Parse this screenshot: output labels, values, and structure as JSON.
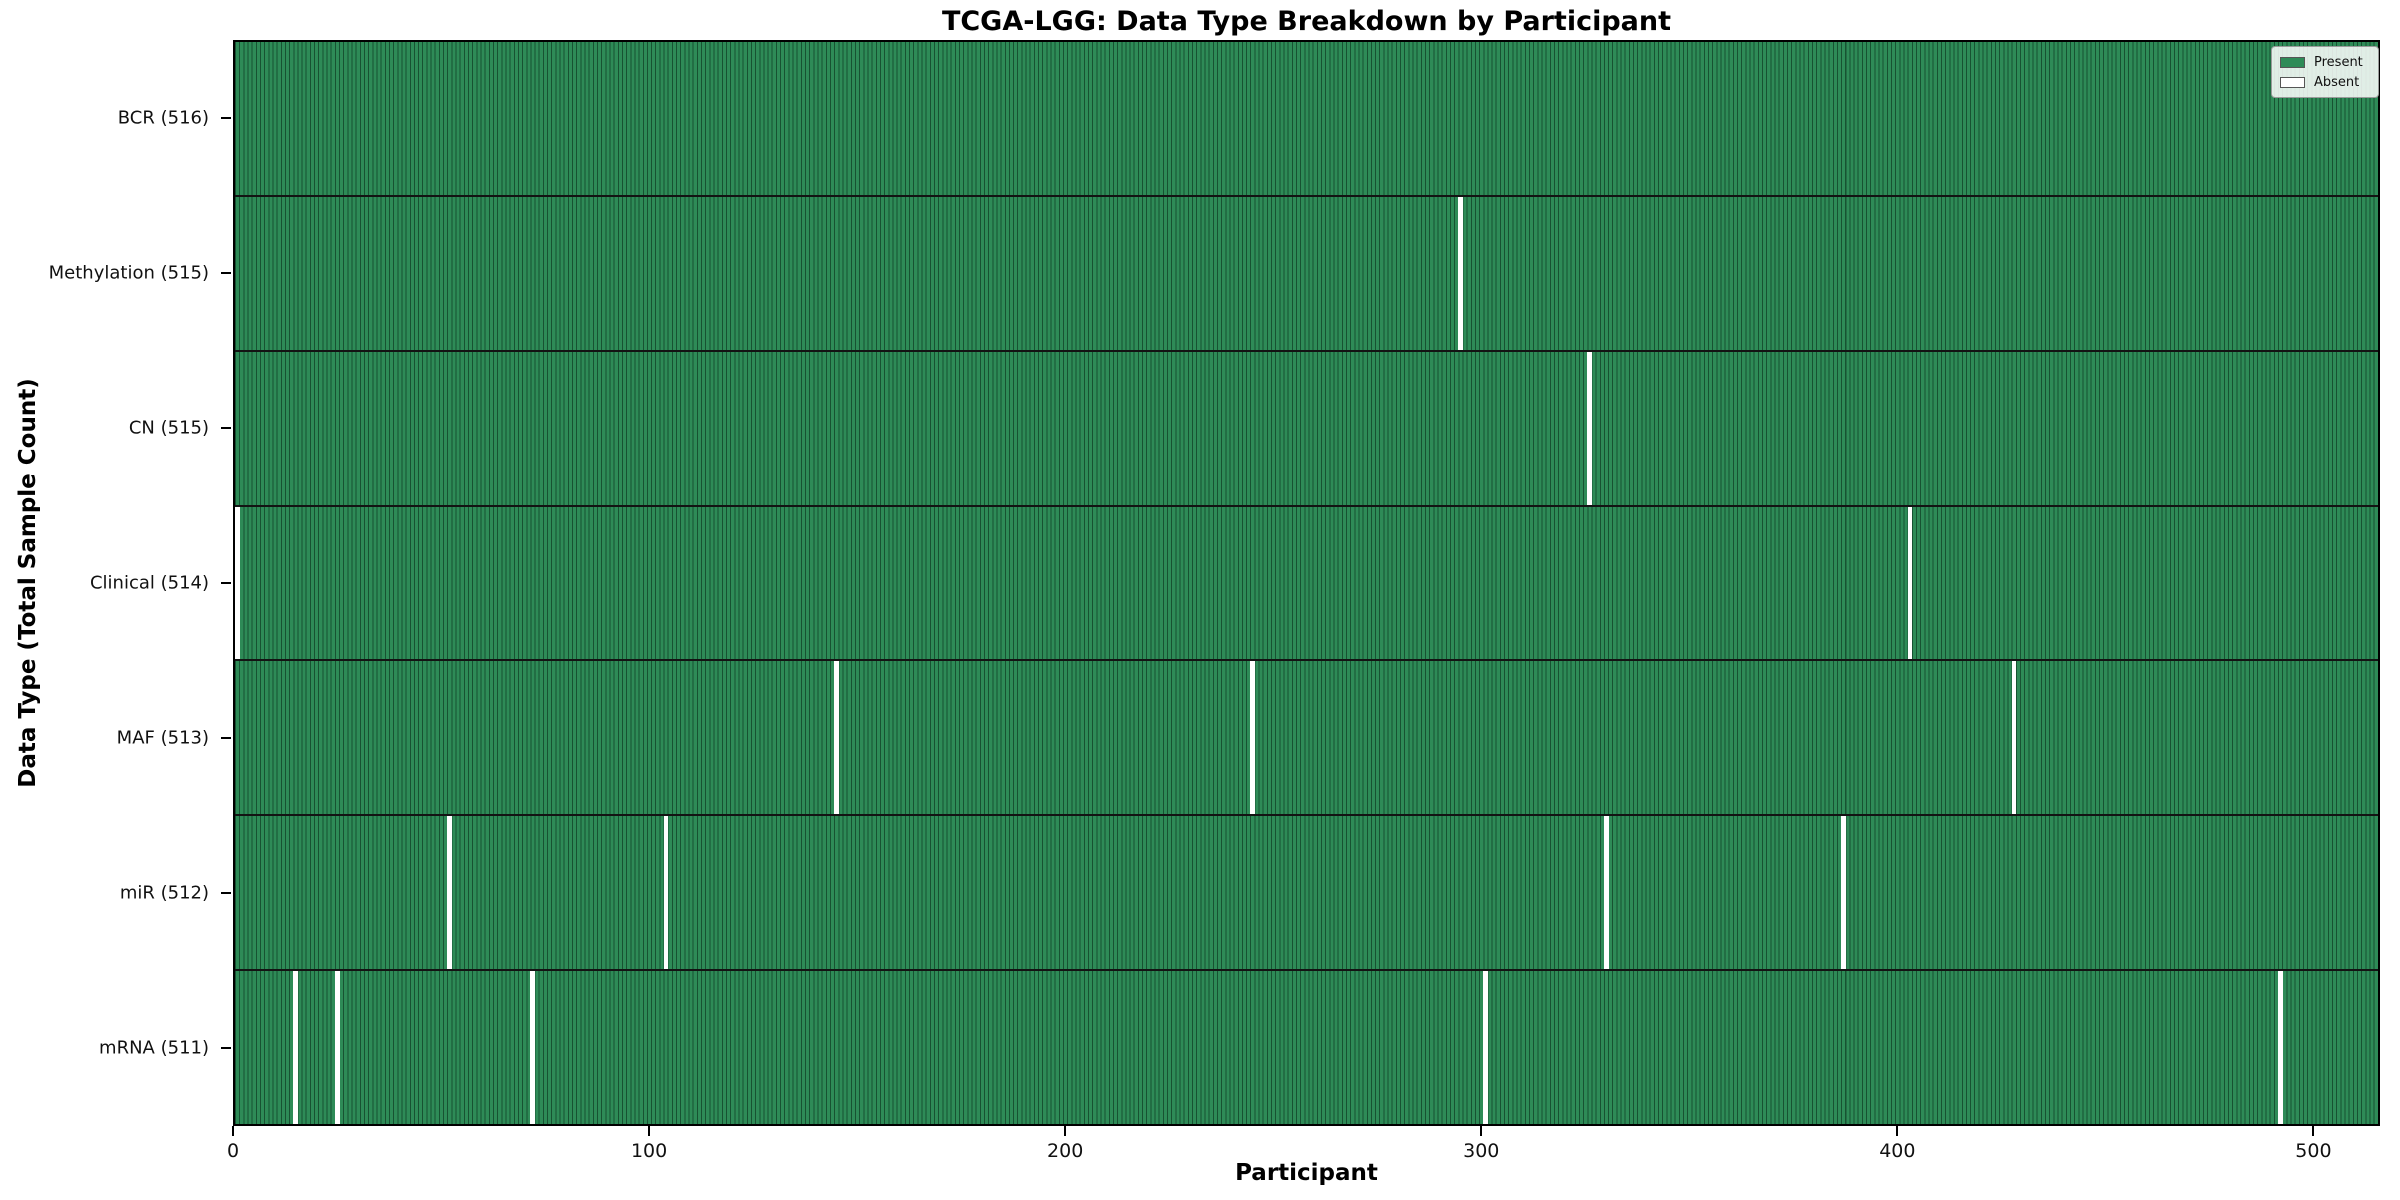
{
  "title": "TCGA-LGG: Data Type Breakdown by Participant",
  "xlabel": "Participant",
  "ylabel": "Data Type (Total Sample Count)",
  "colors": {
    "present": "#2e8b57",
    "absent": "#ffffff",
    "cell_edge": "rgba(0,25,12,0.5)",
    "axis": "#000000"
  },
  "chart_data": {
    "type": "heatmap",
    "title": "TCGA-LGG: Data Type Breakdown by Participant",
    "xlabel": "Participant",
    "ylabel": "Data Type (Total Sample Count)",
    "n_participants": 516,
    "x_ticks": [
      0,
      100,
      200,
      300,
      400,
      500
    ],
    "legend_position": "upper right",
    "legend_entries": [
      {
        "label": "Present",
        "color": "#2e8b57"
      },
      {
        "label": "Absent",
        "color": "#ffffff"
      }
    ],
    "rows": [
      {
        "label": "BCR (516)",
        "data_type": "BCR",
        "total": 516,
        "absent_participants": []
      },
      {
        "label": "Methylation (515)",
        "data_type": "Methylation",
        "total": 515,
        "absent_participants": [
          294
        ]
      },
      {
        "label": "CN (515)",
        "data_type": "CN",
        "total": 515,
        "absent_participants": [
          325
        ]
      },
      {
        "label": "Clinical (514)",
        "data_type": "Clinical",
        "total": 514,
        "absent_participants": [
          0,
          402
        ]
      },
      {
        "label": "MAF (513)",
        "data_type": "MAF",
        "total": 513,
        "absent_participants": [
          144,
          244,
          427
        ]
      },
      {
        "label": "miR (512)",
        "data_type": "miR",
        "total": 512,
        "absent_participants": [
          51,
          103,
          329,
          386
        ]
      },
      {
        "label": "mRNA (511)",
        "data_type": "mRNA",
        "total": 511,
        "absent_participants": [
          14,
          24,
          71,
          300,
          491
        ]
      }
    ]
  }
}
